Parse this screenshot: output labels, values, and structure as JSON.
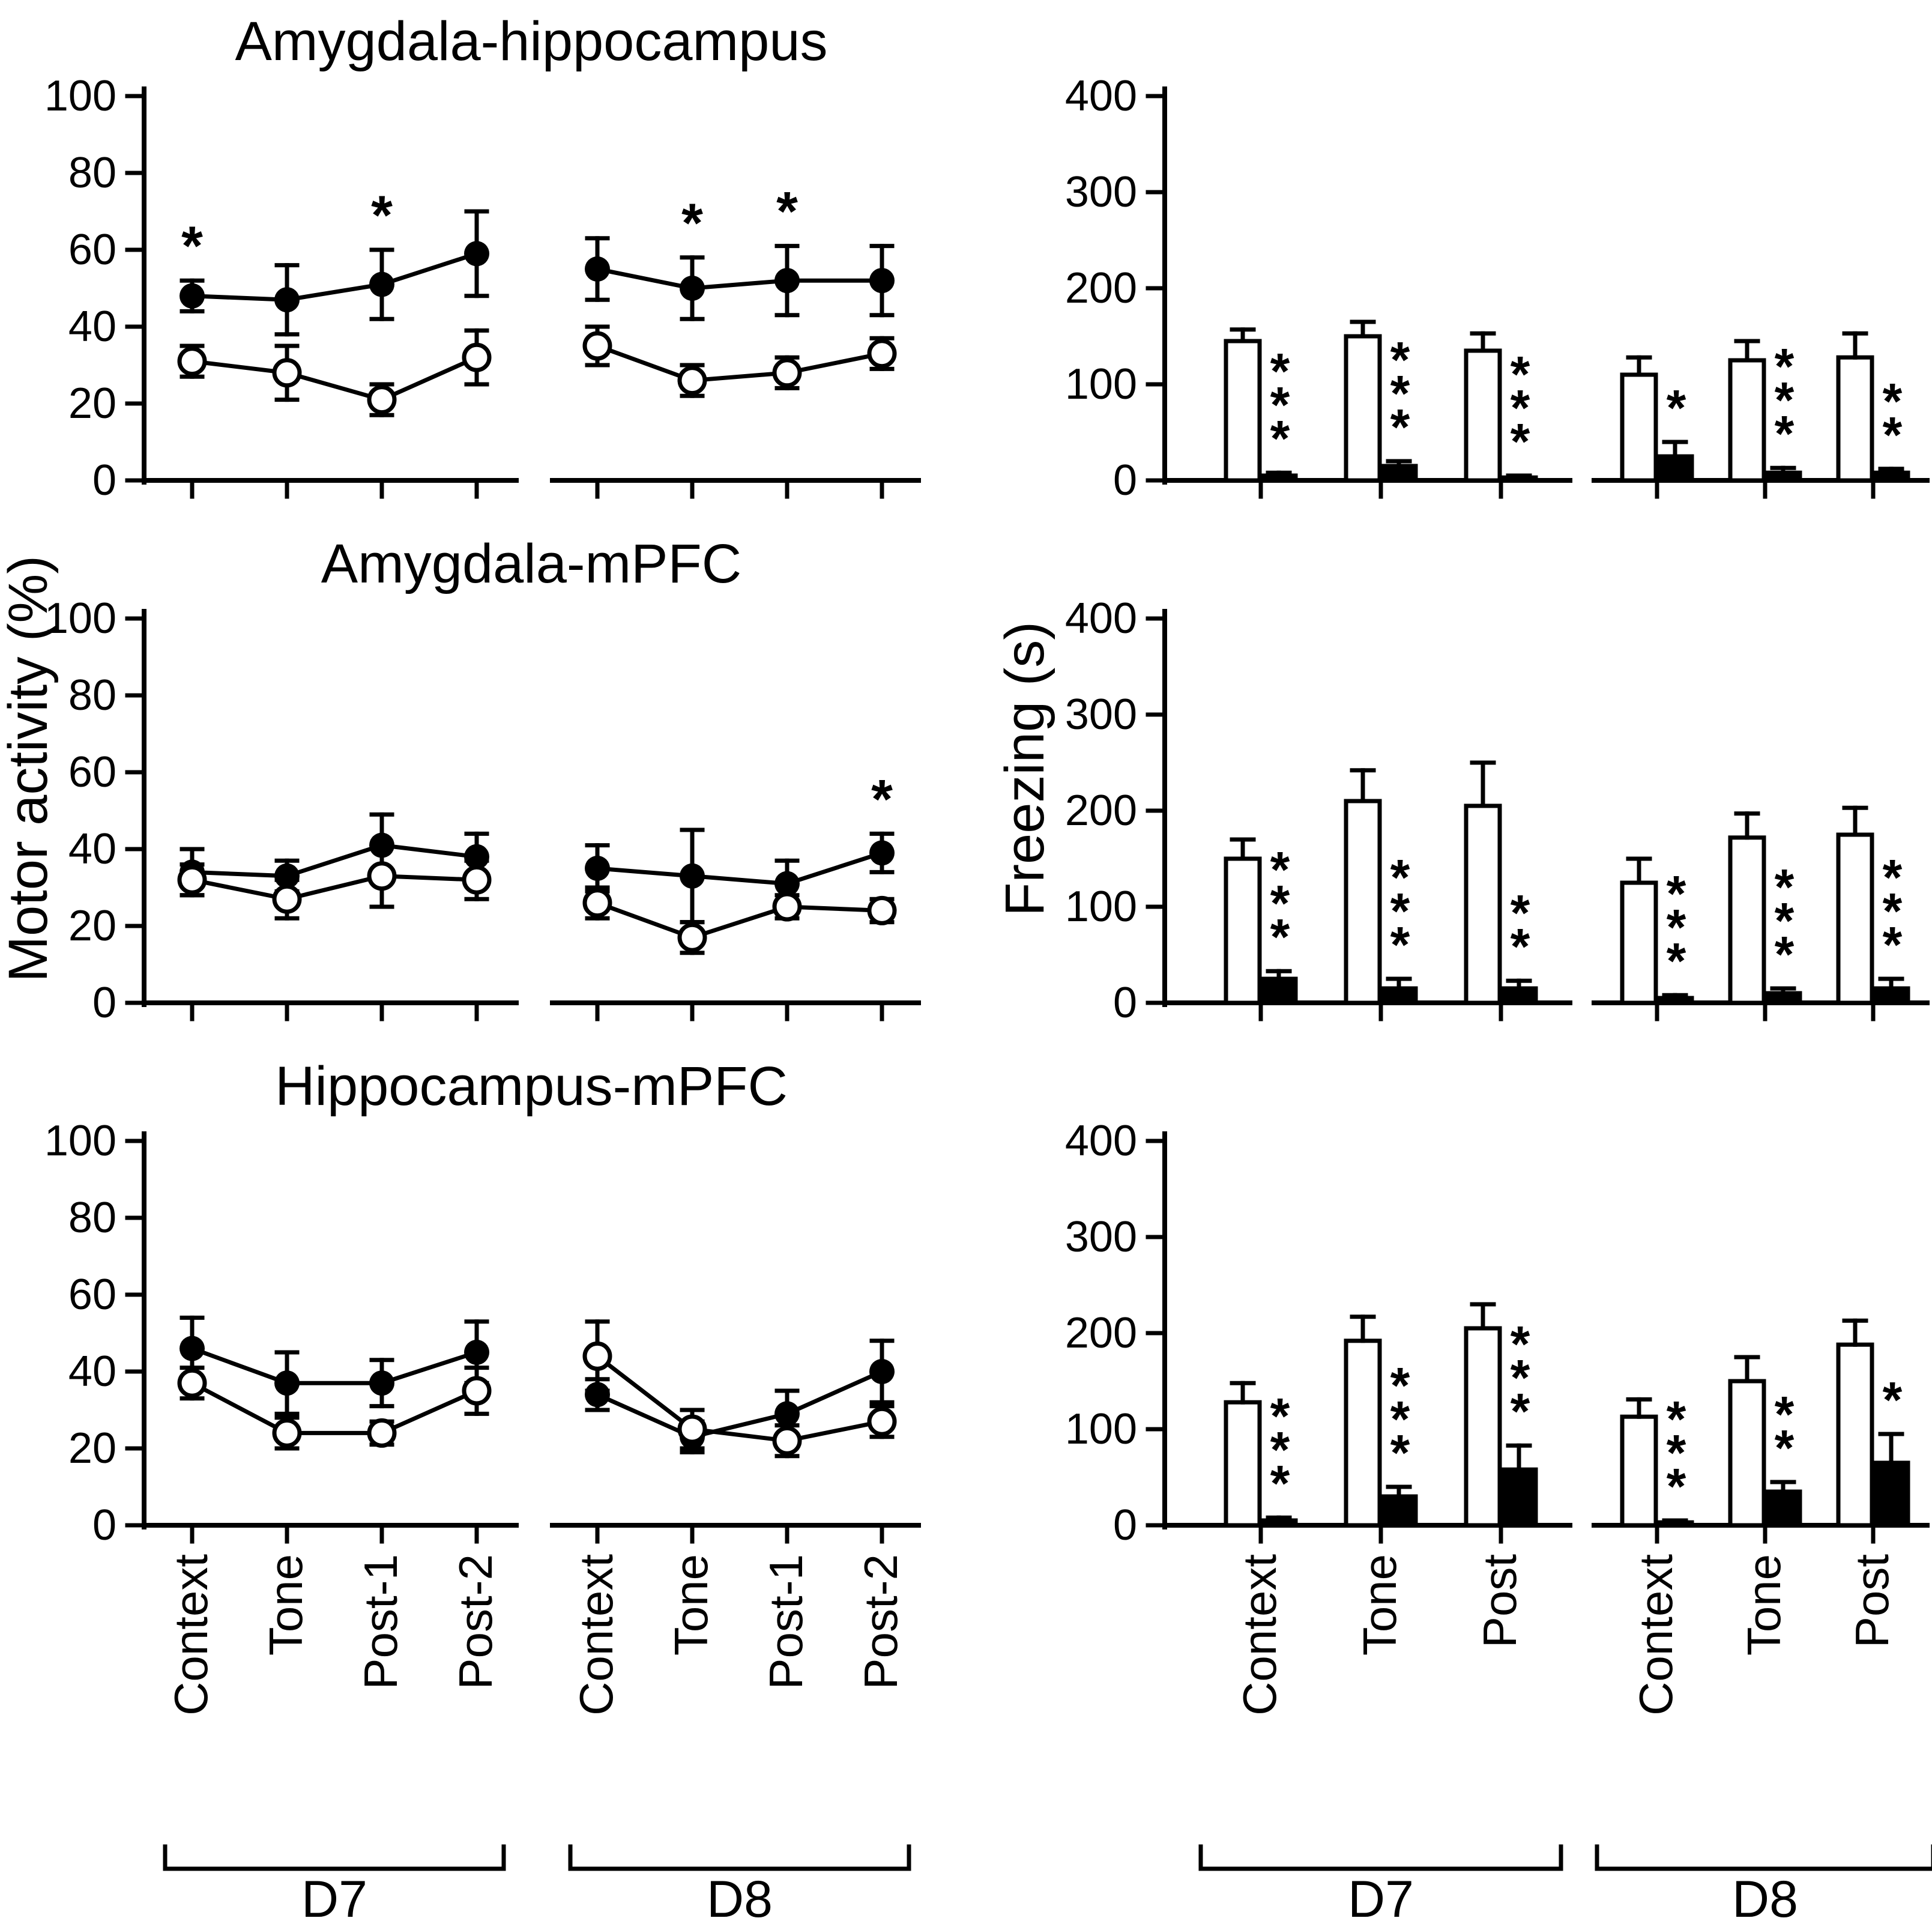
{
  "labels": {
    "left_ylabel": "Motor activity (%)",
    "right_ylabel": "Freezing (s)"
  },
  "chart_data": [
    {
      "type": "line",
      "title": "Amygdala-hippocampus",
      "ylabel": "Motor activity (%)",
      "ylim": [
        0,
        100
      ],
      "yticks": [
        0,
        20,
        40,
        60,
        80,
        100
      ],
      "groups": [
        "D7",
        "D8"
      ],
      "categories": [
        "Context",
        "Tone",
        "Post-1",
        "Post-2"
      ],
      "series": [
        {
          "name": "filled",
          "marker": "filled-circle",
          "values": {
            "D7": [
              48,
              47,
              51,
              59
            ],
            "D8": [
              55,
              50,
              52,
              52
            ]
          },
          "errors": {
            "D7": [
              4,
              9,
              9,
              11
            ],
            "D8": [
              8,
              8,
              9,
              9
            ]
          }
        },
        {
          "name": "open",
          "marker": "open-circle",
          "values": {
            "D7": [
              31,
              28,
              21,
              32
            ],
            "D8": [
              35,
              26,
              28,
              33
            ]
          },
          "errors": {
            "D7": [
              4,
              7,
              4,
              7
            ],
            "D8": [
              5,
              4,
              4,
              4
            ]
          }
        }
      ],
      "significance": {
        "D7": [
          "*",
          "",
          "*",
          ""
        ],
        "D8": [
          "",
          "*",
          "*",
          ""
        ]
      }
    },
    {
      "type": "bar",
      "title": "",
      "ylabel": "Freezing (s)",
      "ylim": [
        0,
        400
      ],
      "yticks": [
        0,
        100,
        200,
        300,
        400
      ],
      "groups": [
        "D7",
        "D8"
      ],
      "categories": [
        "Context",
        "Tone",
        "Post"
      ],
      "series": [
        {
          "name": "white-bars",
          "fill": "#ffffff",
          "values": {
            "D7": [
              145,
              150,
              135
            ],
            "D8": [
              110,
              125,
              128
            ]
          },
          "errors": {
            "D7": [
              12,
              15,
              18
            ],
            "D8": [
              18,
              20,
              25
            ]
          }
        },
        {
          "name": "black-bars",
          "fill": "#000000",
          "values": {
            "D7": [
              5,
              15,
              3
            ],
            "D8": [
              25,
              8,
              8
            ]
          },
          "errors": {
            "D7": [
              3,
              5,
              2
            ],
            "D8": [
              15,
              5,
              4
            ]
          }
        }
      ],
      "significance": {
        "D7": [
          "***",
          "***",
          "***"
        ],
        "D8": [
          "*",
          "***",
          "**"
        ]
      }
    },
    {
      "type": "line",
      "title": "Amygdala-mPFC",
      "ylabel": "Motor activity (%)",
      "ylim": [
        0,
        100
      ],
      "yticks": [
        0,
        20,
        40,
        60,
        80,
        100
      ],
      "groups": [
        "D7",
        "D8"
      ],
      "categories": [
        "Context",
        "Tone",
        "Post-1",
        "Post-2"
      ],
      "series": [
        {
          "name": "filled",
          "marker": "filled-circle",
          "values": {
            "D7": [
              34,
              33,
              41,
              38
            ],
            "D8": [
              35,
              33,
              31,
              39
            ]
          },
          "errors": {
            "D7": [
              6,
              4,
              8,
              6
            ],
            "D8": [
              6,
              12,
              6,
              5
            ]
          }
        },
        {
          "name": "open",
          "marker": "open-circle",
          "values": {
            "D7": [
              32,
              27,
              33,
              32
            ],
            "D8": [
              26,
              17,
              25,
              24
            ]
          },
          "errors": {
            "D7": [
              4,
              5,
              8,
              5
            ],
            "D8": [
              4,
              4,
              3,
              3
            ]
          }
        }
      ],
      "significance": {
        "D7": [
          "",
          "",
          "",
          ""
        ],
        "D8": [
          "",
          "",
          "",
          "*"
        ]
      }
    },
    {
      "type": "bar",
      "title": "",
      "ylabel": "Freezing (s)",
      "ylim": [
        0,
        400
      ],
      "yticks": [
        0,
        100,
        200,
        300,
        400
      ],
      "groups": [
        "D7",
        "D8"
      ],
      "categories": [
        "Context",
        "Tone",
        "Post"
      ],
      "series": [
        {
          "name": "white-bars",
          "fill": "#ffffff",
          "values": {
            "D7": [
              150,
              210,
              205
            ],
            "D8": [
              125,
              172,
              175
            ]
          },
          "errors": {
            "D7": [
              20,
              32,
              45
            ],
            "D8": [
              25,
              25,
              28
            ]
          }
        },
        {
          "name": "black-bars",
          "fill": "#000000",
          "values": {
            "D7": [
              25,
              15,
              15
            ],
            "D8": [
              5,
              10,
              15
            ]
          },
          "errors": {
            "D7": [
              8,
              10,
              8
            ],
            "D8": [
              3,
              5,
              10
            ]
          }
        }
      ],
      "significance": {
        "D7": [
          "***",
          "***",
          "**"
        ],
        "D8": [
          "***",
          "***",
          "***"
        ]
      }
    },
    {
      "type": "line",
      "title": "Hippocampus-mPFC",
      "ylabel": "Motor activity (%)",
      "ylim": [
        0,
        100
      ],
      "yticks": [
        0,
        20,
        40,
        60,
        80,
        100
      ],
      "groups": [
        "D7",
        "D8"
      ],
      "categories": [
        "Context",
        "Tone",
        "Post-1",
        "Post-2"
      ],
      "series": [
        {
          "name": "filled",
          "marker": "filled-circle",
          "values": {
            "D7": [
              46,
              37,
              37,
              45
            ],
            "D8": [
              34,
              23,
              29,
              40
            ]
          },
          "errors": {
            "D7": [
              8,
              8,
              6,
              8
            ],
            "D8": [
              4,
              4,
              6,
              8
            ]
          }
        },
        {
          "name": "open",
          "marker": "open-circle",
          "values": {
            "D7": [
              37,
              24,
              24,
              35
            ],
            "D8": [
              44,
              25,
              22,
              27
            ]
          },
          "errors": {
            "D7": [
              4,
              4,
              3,
              6
            ],
            "D8": [
              9,
              5,
              4,
              4
            ]
          }
        }
      ],
      "significance": {
        "D7": [
          "",
          "",
          "",
          ""
        ],
        "D8": [
          "",
          "",
          "",
          ""
        ]
      }
    },
    {
      "type": "bar",
      "title": "",
      "ylabel": "Freezing (s)",
      "ylim": [
        0,
        400
      ],
      "yticks": [
        0,
        100,
        200,
        300,
        400
      ],
      "groups": [
        "D7",
        "D8"
      ],
      "categories": [
        "Context",
        "Tone",
        "Post"
      ],
      "series": [
        {
          "name": "white-bars",
          "fill": "#ffffff",
          "values": {
            "D7": [
              128,
              192,
              205
            ],
            "D8": [
              113,
              150,
              188
            ]
          },
          "errors": {
            "D7": [
              20,
              25,
              25
            ],
            "D8": [
              18,
              25,
              25
            ]
          }
        },
        {
          "name": "black-bars",
          "fill": "#000000",
          "values": {
            "D7": [
              5,
              30,
              58
            ],
            "D8": [
              3,
              35,
              65
            ]
          },
          "errors": {
            "D7": [
              3,
              10,
              25
            ],
            "D8": [
              2,
              10,
              30
            ]
          }
        }
      ],
      "significance": {
        "D7": [
          "***",
          "***",
          "***"
        ],
        "D8": [
          "***",
          "**",
          "*"
        ]
      }
    }
  ]
}
